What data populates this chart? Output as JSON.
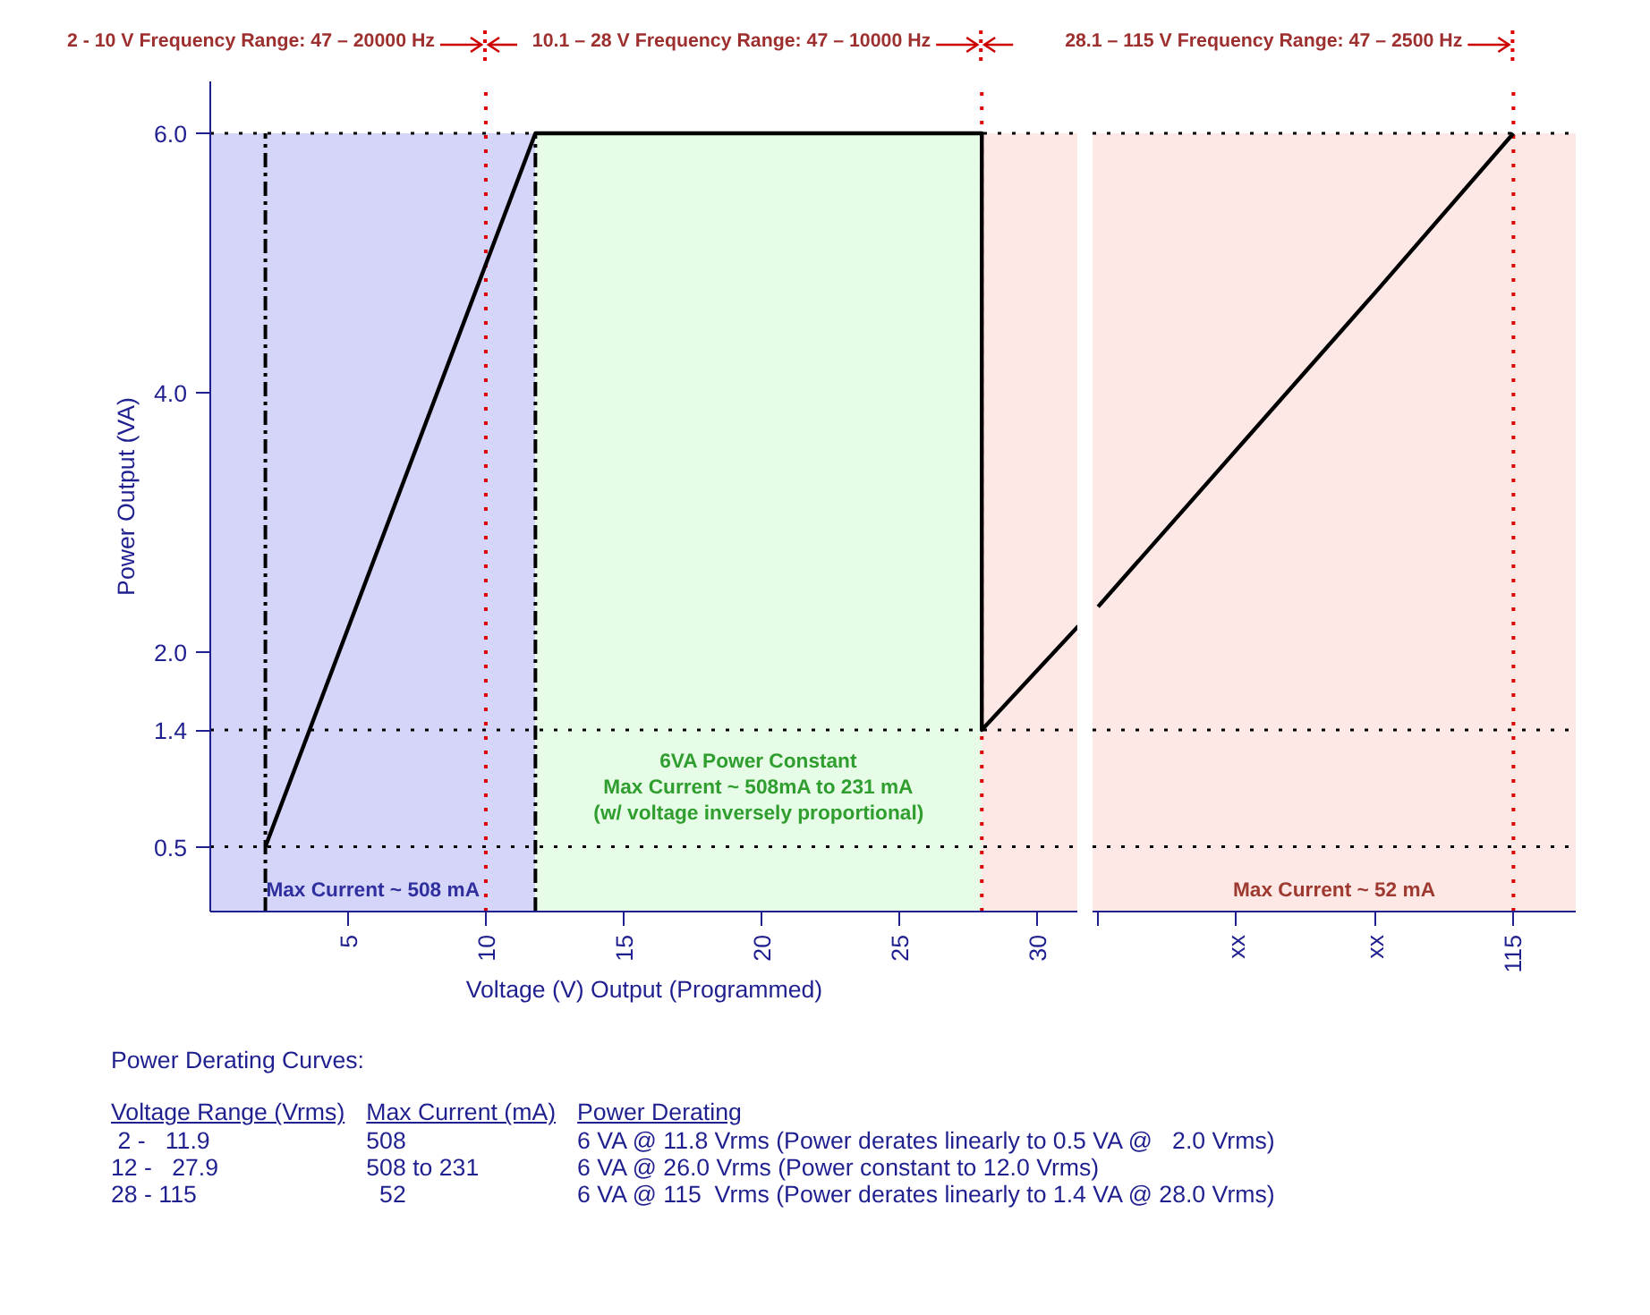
{
  "chart_data": [
    {
      "type": "line",
      "xlabel": "Voltage (V) Output (Programmed)",
      "ylabel": "Power Output (VA)",
      "series": [
        {
          "color": "#000000",
          "x": [
            2,
            11.8,
            28,
            28,
            31.5
          ],
          "values": [
            0.5,
            6.0,
            6.0,
            1.4,
            2.2
          ]
        }
      ],
      "xlim": [
        0,
        31.5
      ],
      "ylim": [
        0,
        6.4
      ],
      "xticks": [
        5,
        10,
        15,
        20,
        25,
        30
      ],
      "yticks": [
        0.5,
        1.4,
        {
          "value": 2,
          "label": "2.0"
        },
        {
          "value": 4,
          "label": "4.0"
        },
        {
          "value": 6,
          "label": "6.0"
        }
      ],
      "line_style": "solid",
      "bands": [
        {
          "axis": "x",
          "from": 0,
          "to": 11.8,
          "color": "#d5d5fa",
          "label": "Max Current ~ 508 mA"
        },
        {
          "axis": "x",
          "from": 11.8,
          "to": 28,
          "color": "#e6fce6",
          "label": "6VA Power Constant\nMax Current ~ 508mA to 231 mA\n(w/ voltage inversely proportional)"
        },
        {
          "axis": "x",
          "from": 28,
          "to": 31.5,
          "color": "#fde8e6"
        }
      ],
      "ref_lines": [
        {
          "axis": "y",
          "value": 6,
          "color": "#000000",
          "line_style": "dotted"
        },
        {
          "axis": "y",
          "value": 1.4,
          "color": "#000000",
          "line_style": "dotted"
        },
        {
          "axis": "y",
          "value": 0.5,
          "color": "#000000",
          "line_style": "dotted"
        },
        {
          "axis": "x",
          "value": 2,
          "color": "#000000",
          "line_style": "dashed"
        },
        {
          "axis": "x",
          "value": 11.8,
          "color": "#000000",
          "line_style": "dashed"
        },
        {
          "axis": "x",
          "value": 10,
          "color": "#dd0000",
          "line_style": "dotted"
        },
        {
          "axis": "x",
          "value": 28,
          "color": "#dd0000",
          "line_style": "dotted"
        }
      ],
      "annotations": [
        "2 - 10 V Frequency Range: 47 – 20000 Hz",
        "10.1 – 28 V Frequency Range: 47 – 10000 Hz"
      ]
    },
    {
      "type": "line",
      "series": [
        {
          "color": "#000000",
          "values": [
            2.35,
            3.56,
            4.77,
            6.0
          ]
        }
      ],
      "categories": [
        null,
        "xx",
        "xx",
        "115"
      ],
      "ylim": [
        0,
        6.4
      ],
      "tick_labels": "x",
      "line_style": "solid",
      "bands": [
        {
          "axis": "y",
          "from": 0,
          "to": 6,
          "color": "#fde8e6",
          "label": "Max Current ~ 52 mA"
        }
      ],
      "ref_lines": [
        {
          "axis": "y",
          "value": 6,
          "color": "#000000",
          "line_style": "dotted"
        },
        {
          "axis": "y",
          "value": 1.4,
          "color": "#000000",
          "line_style": "dotted"
        },
        {
          "axis": "y",
          "value": 0.5,
          "color": "#000000",
          "line_style": "dotted"
        },
        {
          "axis": "x",
          "value": "115",
          "color": "#dd0000",
          "line_style": "dotted"
        }
      ],
      "annotations": [
        "28.1 – 115 V Frequency Range: 47 – 2500 Hz"
      ]
    },
    {
      "type": "other",
      "annotations": [
        "Power Derating Curves:",
        "Voltage Range (Vrms)",
        "Max Current (mA)",
        "Power Derating",
        " 2 -   11.9",
        "508",
        "6 VA @ 11.8 Vrms (Power derates linearly to 0.5 VA @   2.0 Vrms)",
        "12 -   27.9",
        "508 to 231",
        "6 VA @ 26.0 Vrms (Power constant to 12.0 Vrms)",
        "28 - 115",
        "  52",
        "6 VA @ 115  Vrms (Power derates linearly to 1.4 VA @ 28.0 Vrms)"
      ]
    }
  ]
}
